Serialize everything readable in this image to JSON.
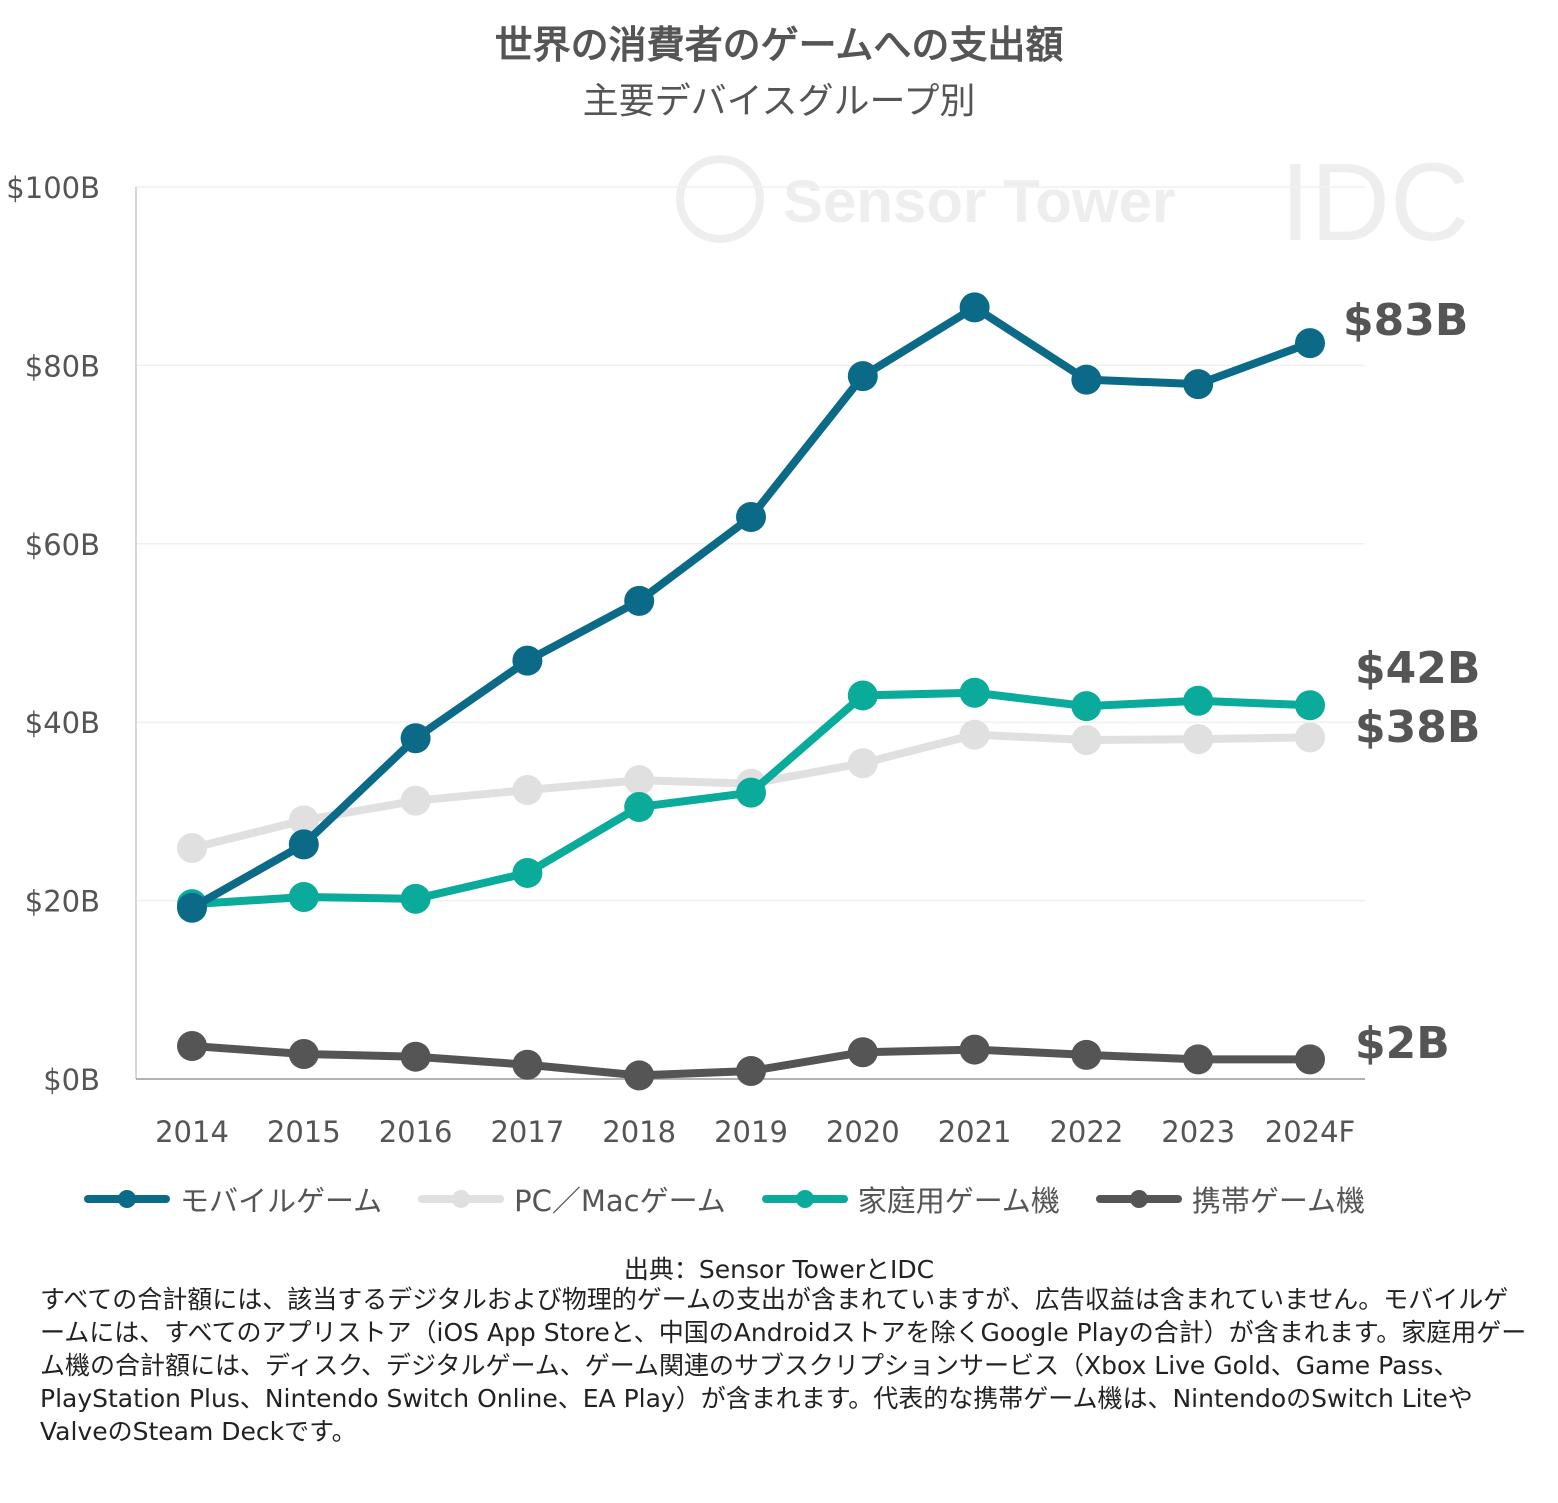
{
  "chart_data": {
    "type": "line",
    "title": "世界の消費者のゲームへの支出額",
    "subtitle": "主要デバイスグループ別",
    "xlabel": "",
    "ylabel": "",
    "ylim": [
      0,
      100
    ],
    "yticks": [
      0,
      20,
      40,
      60,
      80,
      100
    ],
    "ytick_labels": [
      "$0B",
      "$20B",
      "$40B",
      "$60B",
      "$80B",
      "$100B"
    ],
    "grid": true,
    "categories": [
      "2014",
      "2015",
      "2016",
      "2017",
      "2018",
      "2019",
      "2020",
      "2021",
      "2022",
      "2023",
      "2024F"
    ],
    "series": [
      {
        "name": "モバイルゲーム",
        "color": "#0b6a87",
        "values": [
          19.2,
          26.3,
          38.2,
          46.9,
          53.6,
          63.0,
          78.8,
          86.5,
          78.4,
          77.9,
          82.5
        ],
        "end_label": "$83B"
      },
      {
        "name": "PC／Macゲーム",
        "color": "#e0e0e0",
        "values": [
          25.9,
          29.0,
          31.2,
          32.4,
          33.5,
          33.1,
          35.4,
          38.6,
          38.0,
          38.1,
          38.3
        ],
        "end_label": "$38B"
      },
      {
        "name": "家庭用ゲーム機",
        "color": "#0aab9a",
        "values": [
          19.6,
          20.4,
          20.2,
          23.1,
          30.5,
          32.1,
          43.0,
          43.3,
          41.8,
          42.4,
          41.9
        ],
        "end_label": "$42B"
      },
      {
        "name": "携帯ゲーム機",
        "color": "#555555",
        "values": [
          3.7,
          2.8,
          2.5,
          1.6,
          0.4,
          0.9,
          3.0,
          3.3,
          2.7,
          2.2,
          2.2
        ],
        "end_label": "$2B"
      }
    ],
    "legend_position": "bottom"
  },
  "watermark": {
    "left": "Sensor Tower",
    "right": "IDC"
  },
  "source": "出典：Sensor TowerとIDC",
  "notes": "すべての合計額には、該当するデジタルおよび物理的ゲームの支出が含まれていますが、広告収益は含まれていません。モバイルゲームには、すべてのアプリストア（iOS App Storeと、中国のAndroidストアを除くGoogle Playの合計）が含まれます。家庭用ゲーム機の合計額には、ディスク、デジタルゲーム、ゲーム関連のサブスクリプションサービス（Xbox Live Gold、Game Pass、PlayStation Plus、Nintendo Switch Online、EA Play）が含まれます。代表的な携帯ゲーム機は、NintendoのSwitch LiteやValveのSteam Deckです。"
}
